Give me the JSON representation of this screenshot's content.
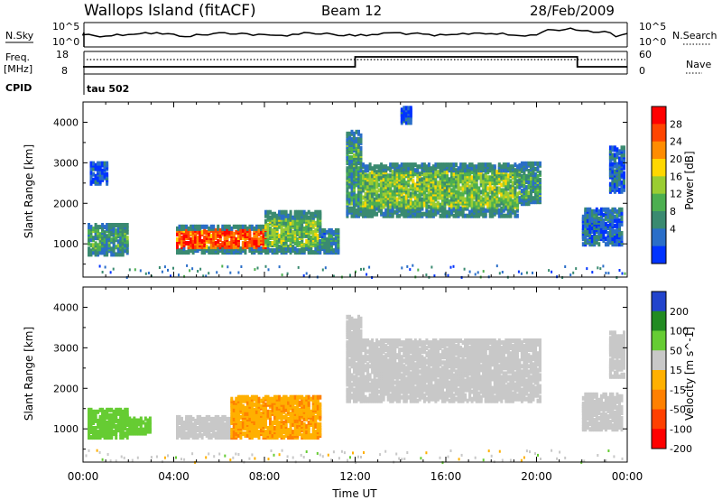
{
  "header": {
    "station": "Wallops Island (fitACF)",
    "beam": "Beam 12",
    "date": "28/Feb/2009"
  },
  "strip_nsky": {
    "left_label": "N.Sky",
    "right_label": "N.Search",
    "left_ticks": [
      "10^5",
      "10^0"
    ],
    "right_ticks": [
      "10^5",
      "10^0"
    ]
  },
  "strip_freq": {
    "left_label_1": "Freq.",
    "left_label_2": "[MHz]",
    "right_label": "Nave",
    "left_ticks": [
      "18",
      "8"
    ],
    "right_ticks": [
      "60",
      "0"
    ],
    "step_series": {
      "x_hours": [
        0,
        12,
        21.8,
        24
      ],
      "levels": [
        "low",
        "high",
        "low",
        "low"
      ]
    }
  },
  "strip_cpid": {
    "label": "CPID",
    "value": "tau 502"
  },
  "chart_data": [
    {
      "type": "heatmap",
      "panel": "power",
      "xlabel": "Time UT",
      "ylabel": "Slant Range [km]",
      "xlim": [
        0,
        24
      ],
      "ylim": [
        180,
        4500
      ],
      "x_ticks": [
        "00:00",
        "04:00",
        "08:00",
        "12:00",
        "16:00",
        "20:00",
        "00:00"
      ],
      "y_ticks": [
        1000,
        2000,
        3000,
        4000
      ],
      "colorbar": {
        "label": "Power [dB]",
        "ticks": [
          28,
          24,
          20,
          16,
          12,
          8,
          4
        ],
        "colors": [
          "#0033ff",
          "#2a6ec8",
          "#3a8a70",
          "#4caf50",
          "#9acd32",
          "#ffd700",
          "#ff8c00",
          "#ff4500",
          "#ff0000"
        ]
      },
      "regions": [
        {
          "t": [
            0.2,
            2.0
          ],
          "r": [
            750,
            1500
          ],
          "level": 10
        },
        {
          "t": [
            0.3,
            1.0
          ],
          "r": [
            2500,
            3000
          ],
          "level": 4
        },
        {
          "t": [
            4.1,
            8.0
          ],
          "r": [
            800,
            1450
          ],
          "level": 26
        },
        {
          "t": [
            8.0,
            10.4
          ],
          "r": [
            800,
            1800
          ],
          "level": 14
        },
        {
          "t": [
            10.4,
            11.2
          ],
          "r": [
            800,
            1350
          ],
          "level": 8
        },
        {
          "t": [
            11.6,
            12.2
          ],
          "r": [
            1700,
            3800
          ],
          "level": 10
        },
        {
          "t": [
            12.2,
            19.2
          ],
          "r": [
            1700,
            3000
          ],
          "level": 14
        },
        {
          "t": [
            19.2,
            20.2
          ],
          "r": [
            2000,
            3000
          ],
          "level": 10
        },
        {
          "t": [
            22.0,
            23.8
          ],
          "r": [
            1000,
            1900
          ],
          "level": 6
        },
        {
          "t": [
            23.2,
            23.9
          ],
          "r": [
            2300,
            3400
          ],
          "level": 5
        },
        {
          "t": [
            14.0,
            14.4
          ],
          "r": [
            4000,
            4400
          ],
          "level": 4
        }
      ]
    },
    {
      "type": "heatmap",
      "panel": "velocity",
      "xlabel": "Time UT",
      "ylabel": "Slant Range [km]",
      "xlim": [
        0,
        24
      ],
      "ylim": [
        180,
        4500
      ],
      "x_ticks": [
        "00:00",
        "04:00",
        "08:00",
        "12:00",
        "16:00",
        "20:00",
        "00:00"
      ],
      "y_ticks": [
        1000,
        2000,
        3000,
        4000
      ],
      "colorbar": {
        "label": "Velocity [m s^-1]",
        "ticks": [
          200,
          100,
          50,
          15,
          -15,
          -50,
          -100,
          -200
        ],
        "colors": [
          "#2244cc",
          "#228b22",
          "#66cc33",
          "#c8c8c8",
          "#ffb000",
          "#ff8000",
          "#ff4000",
          "#ff0000"
        ]
      },
      "regions": [
        {
          "t": [
            0.2,
            2.0
          ],
          "r": [
            800,
            1500
          ],
          "level": 60
        },
        {
          "t": [
            2.0,
            3.0
          ],
          "r": [
            900,
            1300
          ],
          "level": 40
        },
        {
          "t": [
            4.1,
            6.5
          ],
          "r": [
            800,
            1300
          ],
          "level": 0
        },
        {
          "t": [
            6.5,
            10.4
          ],
          "r": [
            800,
            1800
          ],
          "level": -40
        },
        {
          "t": [
            11.6,
            12.2
          ],
          "r": [
            1700,
            3800
          ],
          "level": 0
        },
        {
          "t": [
            12.2,
            20.2
          ],
          "r": [
            1700,
            3200
          ],
          "level": 0
        },
        {
          "t": [
            22.0,
            23.8
          ],
          "r": [
            1000,
            1900
          ],
          "level": 0
        },
        {
          "t": [
            23.2,
            23.9
          ],
          "r": [
            2300,
            3400
          ],
          "level": 0
        }
      ]
    }
  ]
}
